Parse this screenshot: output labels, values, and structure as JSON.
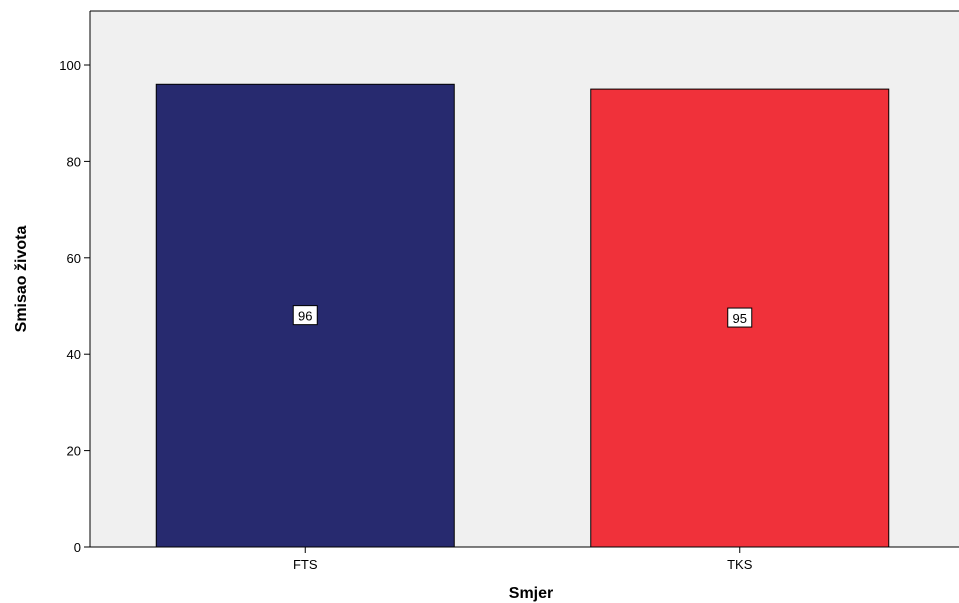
{
  "chart_data": {
    "type": "bar",
    "categories": [
      "FTS",
      "TKS"
    ],
    "values": [
      96,
      95
    ],
    "data_labels": [
      "96",
      "95"
    ],
    "bar_colors": [
      "#272A6F",
      "#F0313A"
    ],
    "title": "",
    "xlabel": "Smjer",
    "ylabel": "Smisao života",
    "ylim": [
      0,
      110
    ],
    "yticks": [
      0,
      20,
      40,
      60,
      80,
      100
    ],
    "plot_background": "#F0F0F0",
    "grid": false,
    "legend": "none"
  }
}
